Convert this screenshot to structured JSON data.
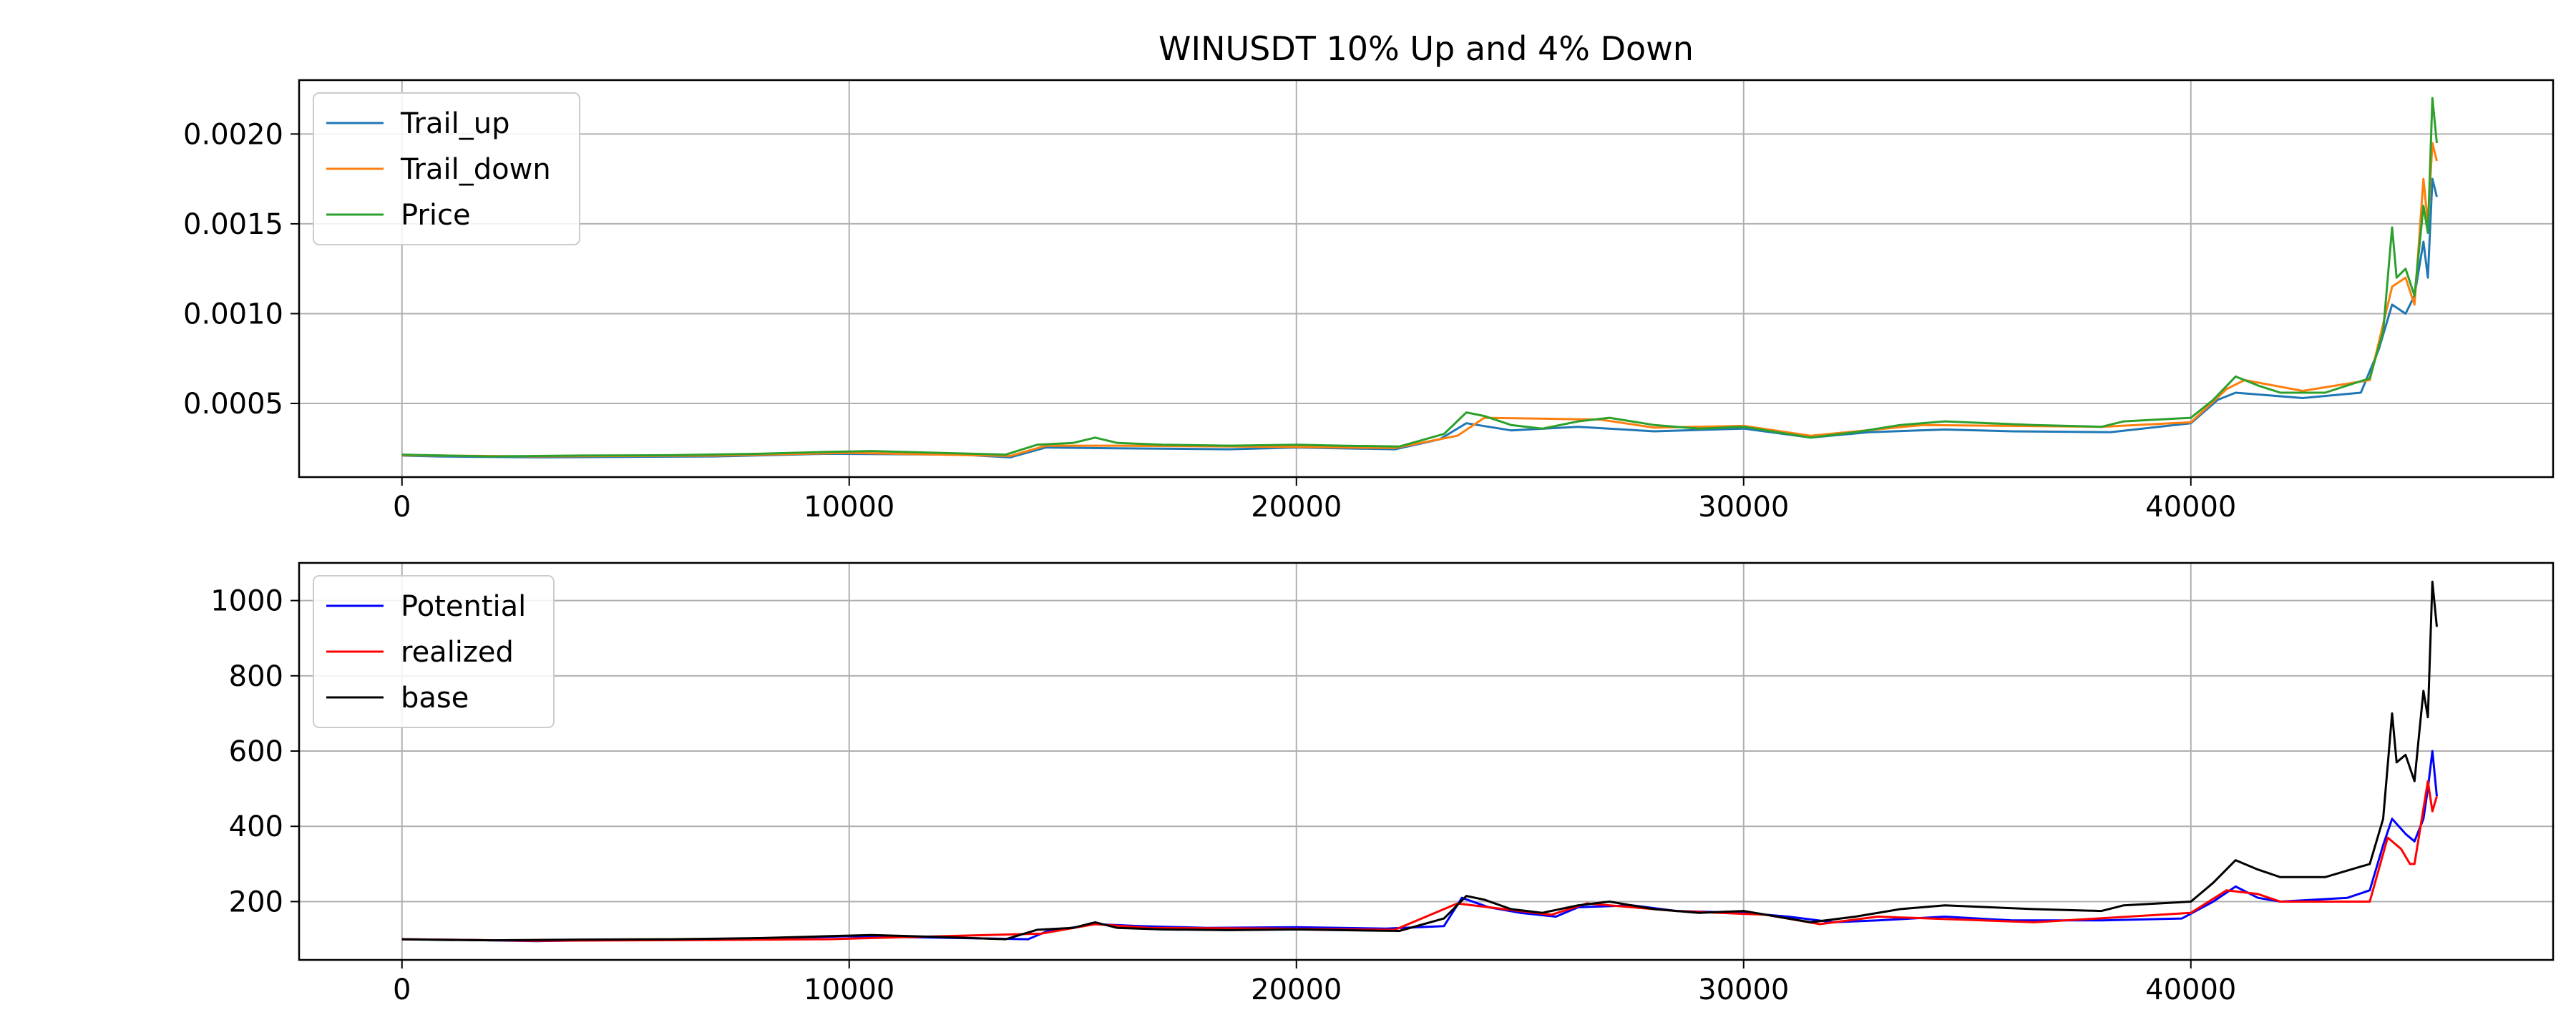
{
  "chart_data": [
    {
      "type": "line",
      "title": "WINUSDT 10% Up and 4% Down",
      "xlim": [
        -2300,
        48100
      ],
      "ylim": [
        9e-05,
        0.0023
      ],
      "x_ticks": [
        0,
        10000,
        20000,
        30000,
        40000
      ],
      "y_ticks": [
        0.0005,
        0.001,
        0.0015,
        0.002
      ],
      "y_tick_labels": [
        "0.0005",
        "0.0010",
        "0.0015",
        "0.0020"
      ],
      "grid": true,
      "legend": "top-left",
      "series": [
        {
          "name": "Trail_up",
          "color": "#1f77b4",
          "x": [
            0,
            800,
            3000,
            7000,
            9500,
            12500,
            13600,
            14400,
            16000,
            18500,
            20000,
            22200,
            23200,
            23800,
            24800,
            26300,
            28000,
            30000,
            31500,
            32800,
            34500,
            36000,
            38200,
            40000,
            40600,
            41000,
            42500,
            43800,
            44200,
            44500,
            44800,
            45000,
            45200,
            45300,
            45400,
            45500
          ],
          "values": [
            0.00021,
            0.000205,
            0.0002,
            0.000205,
            0.00022,
            0.000215,
            0.0002,
            0.000255,
            0.00025,
            0.000245,
            0.000255,
            0.000245,
            0.0003,
            0.00039,
            0.00035,
            0.00037,
            0.000345,
            0.00036,
            0.00031,
            0.00034,
            0.000355,
            0.000345,
            0.00034,
            0.00039,
            0.00052,
            0.00056,
            0.00053,
            0.00056,
            0.0008,
            0.00105,
            0.001,
            0.0011,
            0.0014,
            0.0012,
            0.00175,
            0.00165
          ]
        },
        {
          "name": "Trail_down",
          "color": "#ff7f0e",
          "x": [
            0,
            3000,
            7000,
            10000,
            13600,
            14400,
            16000,
            20000,
            22200,
            23600,
            24200,
            26800,
            28000,
            30000,
            31500,
            34000,
            38000,
            40000,
            40800,
            41200,
            42500,
            44000,
            44500,
            44800,
            45000,
            45200,
            45300,
            45400,
            45500
          ],
          "values": [
            0.000212,
            0.000205,
            0.00021,
            0.000225,
            0.000208,
            0.000265,
            0.000265,
            0.000258,
            0.000252,
            0.00032,
            0.00042,
            0.00041,
            0.000365,
            0.000375,
            0.00032,
            0.00038,
            0.00037,
            0.000395,
            0.00058,
            0.00063,
            0.00057,
            0.00063,
            0.00115,
            0.0012,
            0.00105,
            0.00175,
            0.0015,
            0.00195,
            0.00185
          ]
        },
        {
          "name": "Price",
          "color": "#2ca02c",
          "x": [
            0,
            1000,
            2000,
            4000,
            6000,
            8000,
            9500,
            10500,
            12000,
            13500,
            14200,
            15000,
            15500,
            16000,
            17000,
            18500,
            20000,
            21000,
            22300,
            23300,
            23800,
            24200,
            24800,
            25500,
            26300,
            27000,
            28000,
            29000,
            30000,
            30500,
            31500,
            32500,
            33500,
            34500,
            35500,
            36500,
            38000,
            38500,
            40000,
            40500,
            41000,
            41500,
            42000,
            43000,
            44000,
            44300,
            44500,
            44600,
            44800,
            45000,
            45100,
            45200,
            45300,
            45400,
            45500
          ],
          "values": [
            0.000215,
            0.00021,
            0.000205,
            0.00021,
            0.000212,
            0.00022,
            0.00023,
            0.000235,
            0.000225,
            0.000215,
            0.00027,
            0.00028,
            0.00031,
            0.00028,
            0.00027,
            0.000265,
            0.00027,
            0.000265,
            0.00026,
            0.00033,
            0.00045,
            0.00043,
            0.00038,
            0.00036,
            0.0004,
            0.00042,
            0.00038,
            0.00036,
            0.00037,
            0.00035,
            0.00031,
            0.00034,
            0.00038,
            0.0004,
            0.00039,
            0.00038,
            0.00037,
            0.0004,
            0.00042,
            0.00052,
            0.00065,
            0.0006,
            0.00056,
            0.00056,
            0.00064,
            0.0009,
            0.00148,
            0.0012,
            0.00125,
            0.0011,
            0.00135,
            0.0016,
            0.00145,
            0.0022,
            0.00195
          ]
        }
      ]
    },
    {
      "type": "line",
      "xlim": [
        -2300,
        48100
      ],
      "ylim": [
        45,
        1100
      ],
      "x_ticks": [
        0,
        10000,
        20000,
        30000,
        40000
      ],
      "y_ticks": [
        200,
        400,
        600,
        800,
        1000
      ],
      "y_tick_labels": [
        "200",
        "400",
        "600",
        "800",
        "1000"
      ],
      "grid": true,
      "legend": "top-left",
      "series": [
        {
          "name": "Potential",
          "color": "#0000ff",
          "x": [
            0,
            1500,
            3000,
            5000,
            7000,
            9000,
            10000,
            11500,
            13000,
            14000,
            14400,
            15500,
            16500,
            18000,
            20000,
            22000,
            23300,
            23700,
            24300,
            25000,
            25800,
            26300,
            27500,
            28500,
            30000,
            31000,
            32000,
            33000,
            34500,
            36000,
            38000,
            39800,
            40500,
            41000,
            41500,
            42000,
            43500,
            44000,
            44300,
            44500,
            44800,
            45000,
            45200,
            45300,
            45400,
            45500
          ],
          "values": [
            100,
            98,
            95,
            98,
            100,
            105,
            108,
            105,
            102,
            100,
            120,
            140,
            135,
            130,
            132,
            128,
            135,
            210,
            185,
            170,
            160,
            185,
            190,
            175,
            170,
            160,
            145,
            150,
            160,
            150,
            150,
            155,
            200,
            240,
            210,
            200,
            210,
            230,
            350,
            420,
            380,
            360,
            420,
            500,
            600,
            480
          ]
        },
        {
          "name": "realized",
          "color": "#ff0000",
          "x": [
            0,
            1500,
            3000,
            7000,
            9500,
            14300,
            15500,
            16700,
            19500,
            22200,
            23600,
            25700,
            26500,
            28500,
            30500,
            31700,
            33000,
            36500,
            40000,
            40800,
            41500,
            42000,
            44000,
            44400,
            44700,
            44900,
            45000,
            45300,
            45400,
            45500
          ],
          "values": [
            100,
            98,
            96,
            98,
            100,
            115,
            140,
            130,
            128,
            125,
            195,
            165,
            195,
            175,
            165,
            140,
            160,
            145,
            170,
            230,
            220,
            200,
            200,
            370,
            340,
            300,
            300,
            520,
            440,
            480
          ]
        },
        {
          "name": "base",
          "color": "#000000",
          "x": [
            0,
            1000,
            2000,
            4000,
            6000,
            8000,
            9500,
            10500,
            12000,
            13500,
            14200,
            15000,
            15500,
            16000,
            17000,
            18500,
            20000,
            21000,
            22300,
            23300,
            23800,
            24200,
            24800,
            25500,
            26300,
            27000,
            28000,
            29000,
            30000,
            30500,
            31500,
            32500,
            33500,
            34500,
            35500,
            36500,
            38000,
            38500,
            40000,
            40500,
            41000,
            41500,
            42000,
            43000,
            44000,
            44300,
            44500,
            44600,
            44800,
            45000,
            45100,
            45200,
            45300,
            45400,
            45500
          ],
          "values": [
            100,
            98,
            97,
            99,
            100,
            103,
            108,
            111,
            106,
            100,
            125,
            130,
            145,
            130,
            126,
            124,
            126,
            124,
            122,
            155,
            215,
            205,
            180,
            170,
            190,
            200,
            180,
            170,
            175,
            165,
            145,
            160,
            180,
            190,
            185,
            180,
            175,
            190,
            200,
            250,
            310,
            285,
            265,
            265,
            300,
            420,
            700,
            570,
            590,
            520,
            640,
            760,
            690,
            1050,
            930
          ]
        }
      ]
    }
  ]
}
